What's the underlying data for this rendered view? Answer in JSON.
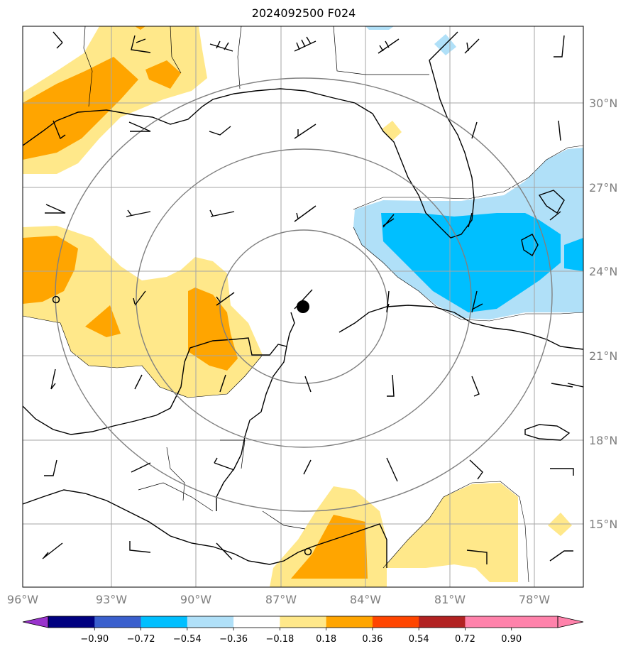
{
  "title": "2024092500 F024",
  "map": {
    "lon_labels": [
      "96°W",
      "93°W",
      "90°W",
      "87°W",
      "84°W",
      "81°W",
      "78°W"
    ],
    "lat_labels": [
      "30°N",
      "27°N",
      "24°N",
      "21°N",
      "18°N",
      "15°N"
    ],
    "storm_center": {
      "lon": -86.2,
      "lat": 22.7
    },
    "range_rings_deg": [
      3,
      6,
      9
    ],
    "colors": {
      "grid": "#a6a6a6",
      "rings": "#808080",
      "coast": "#000000",
      "borders": "#000000"
    }
  },
  "colorbar": {
    "labels": [
      "−0.90",
      "−0.72",
      "−0.54",
      "−0.36",
      "−0.18",
      "0.18",
      "0.36",
      "0.54",
      "0.72",
      "0.90"
    ],
    "colors": [
      "#9933cc",
      "#000080",
      "#3a5fcd",
      "#00bfff",
      "#b0e0f8",
      "#ffffff",
      "#ffe88a",
      "#ffa500",
      "#ff4500",
      "#b22222",
      "#ff82ab",
      "#ff82ab"
    ]
  }
}
